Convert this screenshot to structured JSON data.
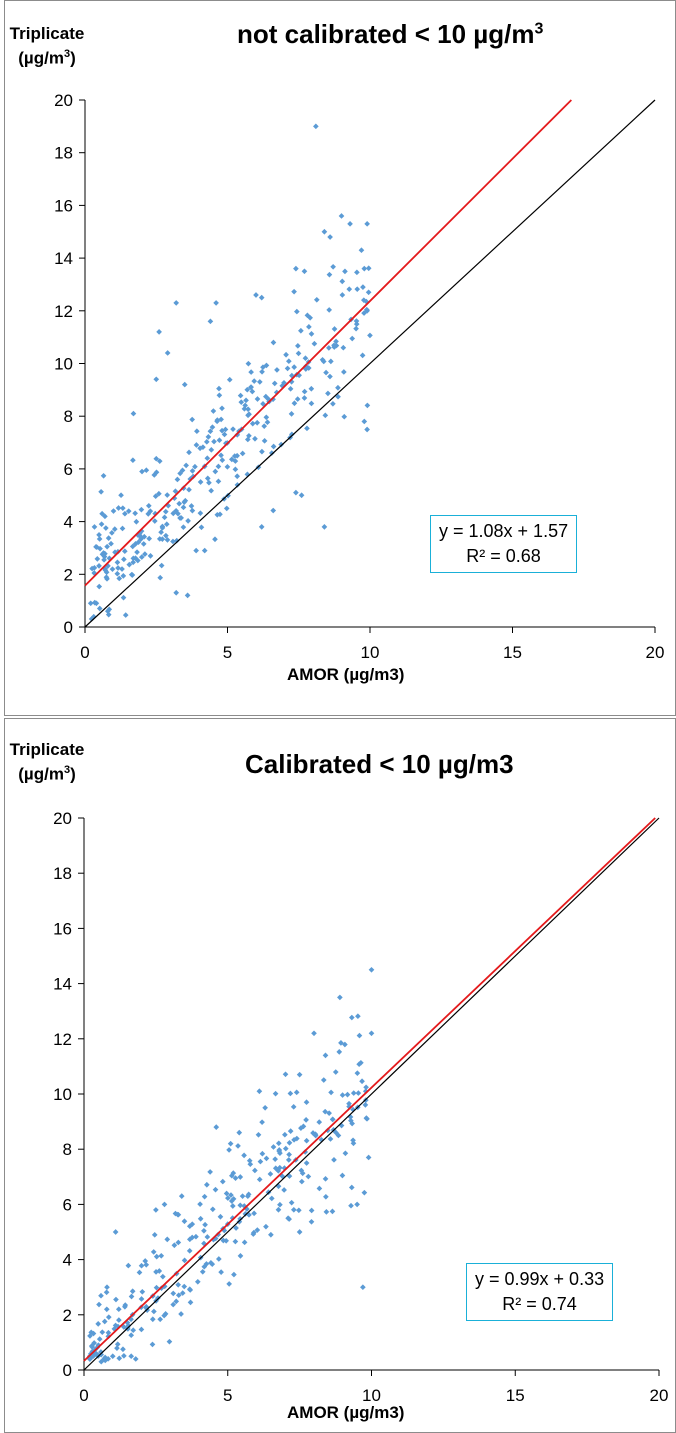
{
  "chart_data": [
    {
      "type": "scatter",
      "title_main": "not calibrated < 10 µg/m",
      "title_sup": "3",
      "ylabel_line1": "Triplicate",
      "ylabel_line2_main": "(µg/m",
      "ylabel_line2_sup": "3",
      "ylabel_line2_end": ")",
      "xlabel": "AMOR (µg/m3)",
      "xlim": [
        0,
        20
      ],
      "ylim": [
        0,
        20
      ],
      "xticks": [
        "0",
        "5",
        "10",
        "15",
        "20"
      ],
      "yticks": [
        "0",
        "2",
        "4",
        "6",
        "8",
        "10",
        "12",
        "14",
        "16",
        "18",
        "20"
      ],
      "grid": false,
      "equation": "y = 1.08x + 1.57",
      "r2": "R² = 0.68",
      "fit": {
        "slope": 1.08,
        "intercept": 1.57,
        "color": "#e41a1c"
      },
      "identity_line": {
        "color": "#000000"
      },
      "marker_color": "#5b9bd5",
      "cluster_points": [
        [
          0.2,
          0.9
        ],
        [
          0.4,
          0.9
        ],
        [
          0.8,
          0.6
        ],
        [
          0.6,
          4.3
        ],
        [
          0.7,
          4.2
        ],
        [
          1.0,
          4.4
        ],
        [
          1.4,
          4.3
        ],
        [
          1.7,
          8.1
        ],
        [
          2.6,
          11.2
        ],
        [
          2.9,
          10.4
        ],
        [
          3.2,
          12.3
        ],
        [
          4.6,
          12.3
        ],
        [
          4.4,
          11.6
        ],
        [
          6.0,
          12.6
        ],
        [
          6.2,
          12.5
        ],
        [
          7.4,
          13.6
        ],
        [
          7.7,
          13.5
        ],
        [
          8.1,
          19.0
        ],
        [
          8.4,
          15.0
        ],
        [
          8.6,
          14.8
        ],
        [
          9.0,
          15.6
        ],
        [
          9.3,
          15.3
        ],
        [
          9.9,
          15.3
        ],
        [
          9.7,
          14.3
        ],
        [
          9.8,
          13.6
        ],
        [
          9.9,
          12.0
        ],
        [
          9.8,
          7.8
        ],
        [
          8.4,
          3.8
        ],
        [
          7.4,
          5.1
        ],
        [
          7.6,
          5.0
        ],
        [
          6.2,
          3.8
        ],
        [
          3.6,
          1.2
        ],
        [
          3.2,
          1.3
        ],
        [
          3.9,
          2.9
        ],
        [
          4.2,
          2.9
        ],
        [
          2.5,
          9.4
        ],
        [
          3.5,
          9.2
        ],
        [
          2.0,
          5.9
        ]
      ],
      "random_spec": {
        "n": 320,
        "seed": 11,
        "noise": 1.65
      }
    },
    {
      "type": "scatter",
      "title_main": "Calibrated < 10 µg/m3",
      "title_sup": "",
      "ylabel_line1": "Triplicate",
      "ylabel_line2_main": "(µg/m",
      "ylabel_line2_sup": "3",
      "ylabel_line2_end": ")",
      "xlabel": "AMOR (µg/m3)",
      "xlim": [
        0,
        20
      ],
      "ylim": [
        0,
        20
      ],
      "xticks": [
        "0",
        "5",
        "10",
        "15",
        "20"
      ],
      "yticks": [
        "0",
        "2",
        "4",
        "6",
        "8",
        "10",
        "12",
        "14",
        "16",
        "18",
        "20"
      ],
      "grid": false,
      "equation": "y = 0.99x + 0.33",
      "r2": "R² = 0.74",
      "fit": {
        "slope": 0.99,
        "intercept": 0.33,
        "color": "#e41a1c"
      },
      "identity_line": {
        "color": "#000000"
      },
      "marker_color": "#5b9bd5",
      "cluster_points": [
        [
          0.2,
          0.5
        ],
        [
          0.5,
          0.9
        ],
        [
          0.6,
          0.3
        ],
        [
          0.7,
          0.4
        ],
        [
          0.8,
          3.0
        ],
        [
          1.1,
          5.0
        ],
        [
          1.0,
          0.5
        ],
        [
          1.8,
          0.4
        ],
        [
          2.5,
          5.8
        ],
        [
          2.8,
          6.0
        ],
        [
          3.4,
          6.3
        ],
        [
          4.6,
          8.8
        ],
        [
          5.1,
          8.2
        ],
        [
          5.4,
          8.6
        ],
        [
          6.1,
          10.1
        ],
        [
          6.3,
          9.5
        ],
        [
          7.5,
          10.7
        ],
        [
          8.0,
          12.2
        ],
        [
          8.4,
          11.4
        ],
        [
          8.9,
          13.5
        ],
        [
          10.0,
          14.5
        ],
        [
          10.0,
          12.2
        ],
        [
          9.8,
          10.1
        ],
        [
          9.9,
          7.7
        ],
        [
          9.7,
          3.0
        ],
        [
          9.5,
          6.0
        ],
        [
          7.5,
          5.0
        ],
        [
          7.1,
          5.5
        ],
        [
          6.5,
          4.9
        ]
      ],
      "random_spec": {
        "n": 300,
        "seed": 29,
        "noise": 1.35
      }
    }
  ]
}
